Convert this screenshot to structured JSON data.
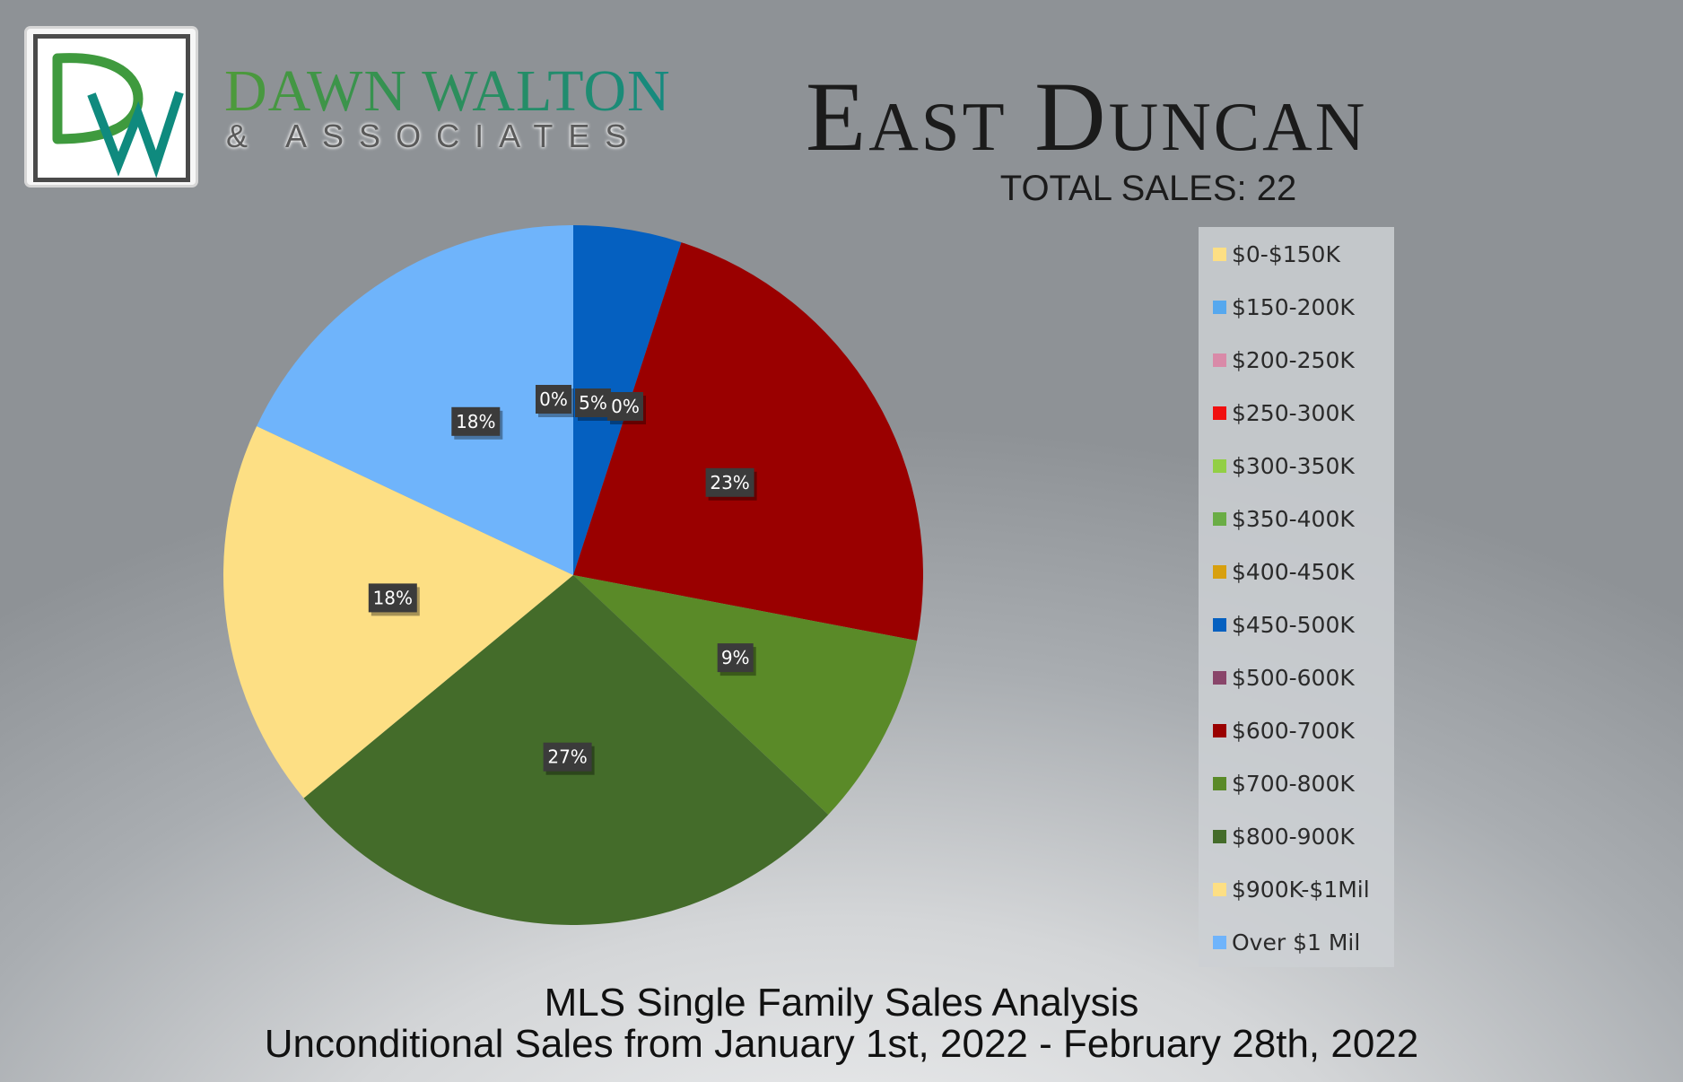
{
  "logo": {
    "monogram": "DW",
    "name": "DAWN WALTON",
    "tagline": "& ASSOCIATES",
    "colors": {
      "green": "#3f9a3e",
      "teal": "#0f8a7e",
      "frame": "#4a4a4a"
    }
  },
  "chart_data": {
    "type": "pie",
    "title": "East Duncan",
    "subtitle": "TOTAL SALES: 22",
    "start_angle_deg": 0,
    "direction": "clockwise",
    "legend_position": "right",
    "slices": [
      {
        "label": "$0-$150K",
        "value": 0,
        "color": "#fddf84"
      },
      {
        "label": "$150-200K",
        "value": 0,
        "color": "#56a8ee"
      },
      {
        "label": "$200-250K",
        "value": 0,
        "color": "#d98aa8"
      },
      {
        "label": "$250-300K",
        "value": 0,
        "color": "#f10f0f"
      },
      {
        "label": "$300-350K",
        "value": 0,
        "color": "#92cf45"
      },
      {
        "label": "$350-400K",
        "value": 0,
        "color": "#6aad45"
      },
      {
        "label": "$400-450K",
        "value": 0,
        "color": "#d8a00f"
      },
      {
        "label": "$450-500K",
        "value": 5,
        "color": "#0560c0"
      },
      {
        "label": "$500-600K",
        "value": 0,
        "color": "#89456a"
      },
      {
        "label": "$600-700K",
        "value": 23,
        "color": "#9a0000"
      },
      {
        "label": "$700-800K",
        "value": 9,
        "color": "#5a8a28"
      },
      {
        "label": "$800-900K",
        "value": 27,
        "color": "#446c2a"
      },
      {
        "label": "$900K-$1Mil",
        "value": 18,
        "color": "#fddf84"
      },
      {
        "label": "Over $1 Mil",
        "value": 18,
        "color": "#6fb4fb"
      }
    ],
    "data_labels": [
      {
        "slice": "$400-450K",
        "text": "0%"
      },
      {
        "slice": "$450-500K",
        "text": "5%"
      },
      {
        "slice": "$500-600K",
        "text": "0%"
      },
      {
        "slice": "$600-700K",
        "text": "23%"
      },
      {
        "slice": "$700-800K",
        "text": "9%"
      },
      {
        "slice": "$800-900K",
        "text": "27%"
      },
      {
        "slice": "$900K-$1Mil",
        "text": "18%"
      },
      {
        "slice": "Over $1 Mil",
        "text": "18%"
      }
    ]
  },
  "footer": {
    "line1": "MLS Single Family Sales Analysis",
    "line2": "Unconditional Sales from January 1st, 2022 - February 28th, 2022"
  }
}
